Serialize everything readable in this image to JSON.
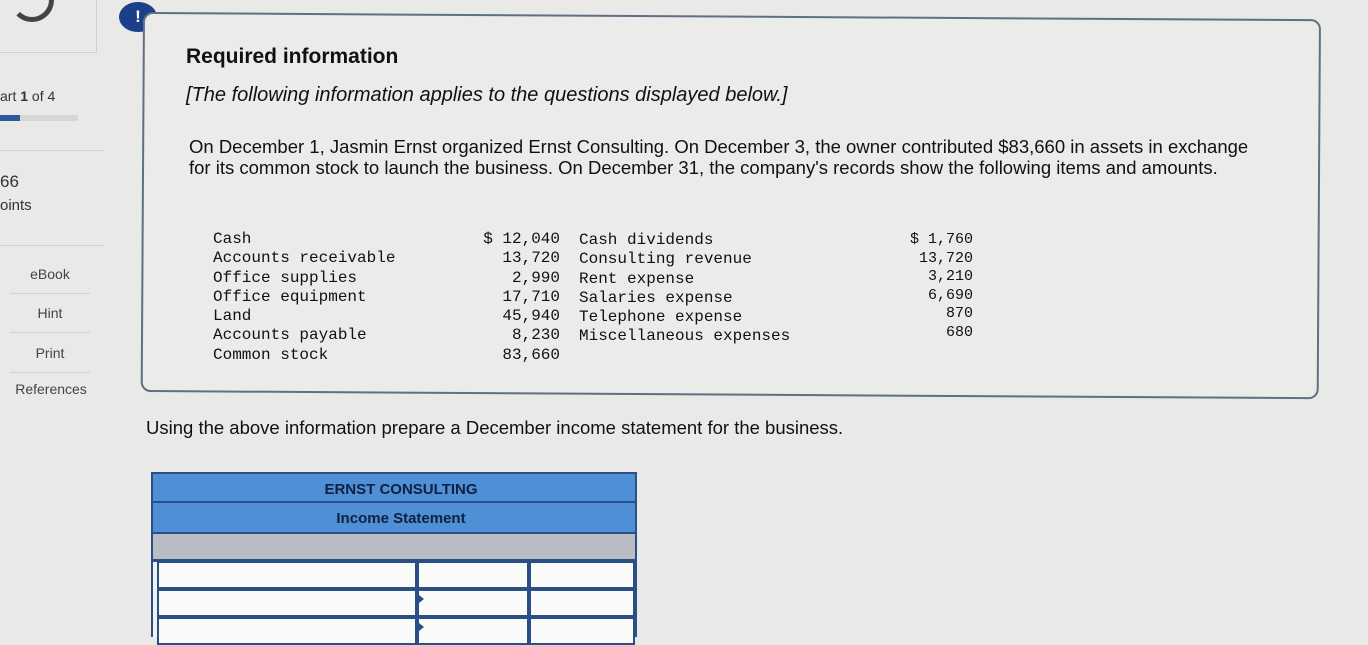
{
  "sidebar": {
    "part_prefix": "art",
    "part_current": "1",
    "part_suffix": "of 4",
    "part_progress": 0.25,
    "points_value": "66",
    "points_label": "oints",
    "buttons": [
      "eBook",
      "Hint",
      "Print"
    ],
    "references_label": "References"
  },
  "alert_icon": "!",
  "required": {
    "title": "Required information",
    "subtitle": "[The following information applies to the questions displayed below.]",
    "intro": "On December 1, Jasmin Ernst organized Ernst Consulting. On December 3, the owner contributed $83,660 in assets in exchange for its common stock to launch the business. On December 31, the company's records show the following items and amounts.",
    "items_left": [
      {
        "name": "Cash",
        "amount": "$ 12,040"
      },
      {
        "name": "Accounts receivable",
        "amount": "13,720"
      },
      {
        "name": "Office supplies",
        "amount": "2,990"
      },
      {
        "name": "Office equipment",
        "amount": "17,710"
      },
      {
        "name": "Land",
        "amount": "45,940"
      },
      {
        "name": "Accounts payable",
        "amount": "8,230"
      },
      {
        "name": "Common stock",
        "amount": "83,660"
      }
    ],
    "items_right": [
      {
        "name": "Cash dividends",
        "amount": "$ 1,760"
      },
      {
        "name": "Consulting revenue",
        "amount": "13,720"
      },
      {
        "name": "Rent expense",
        "amount": "3,210"
      },
      {
        "name": "Salaries expense",
        "amount": "6,690"
      },
      {
        "name": "Telephone expense",
        "amount": "870"
      },
      {
        "name": "Miscellaneous expenses",
        "amount": "680"
      }
    ]
  },
  "instruction": "Using the above information prepare a December income statement for the business.",
  "statement": {
    "company": "ERNST CONSULTING",
    "title": "Income Statement"
  },
  "colors": {
    "header_blue": "#4e8fd6",
    "border_blue": "#2a4f86",
    "alert_blue": "#1c3f8c"
  }
}
